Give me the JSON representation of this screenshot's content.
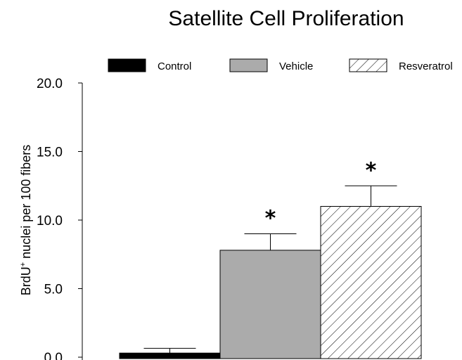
{
  "chart_data": {
    "type": "bar",
    "title": "Satellite Cell Proliferation",
    "ylabel_main": "BrdU",
    "ylabel_sup": "+",
    "ylabel_rest": " nuclei per 100 fibers",
    "xlabel": "",
    "ylim": [
      0,
      20
    ],
    "yticks": [
      "0.0",
      "5.0",
      "10.0",
      "15.0",
      "20.0"
    ],
    "ytick_values": [
      0,
      5,
      10,
      15,
      20
    ],
    "categories": [
      "Control",
      "Vehicle",
      "Resveratrol"
    ],
    "values": [
      0.3,
      7.8,
      11.0
    ],
    "errors": [
      0.35,
      1.2,
      1.5
    ],
    "significance": [
      "",
      "*",
      "*"
    ],
    "colors": [
      "#000000",
      "#ababab",
      "hatch"
    ],
    "legend": {
      "placement": "top",
      "entries": [
        "Control",
        "Vehicle",
        "Resveratrol"
      ]
    },
    "grid": false
  }
}
